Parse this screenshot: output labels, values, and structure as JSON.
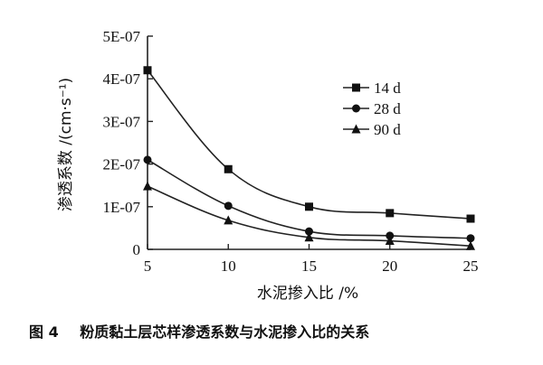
{
  "chart_data": {
    "type": "line",
    "title": "",
    "xlabel": "水泥掺入比 /%",
    "ylabel": "渗透系数 /(cm·s⁻¹)",
    "x": [
      5,
      10,
      15,
      20,
      25
    ],
    "xticks": [
      "5",
      "10",
      "15",
      "20",
      "25"
    ],
    "xlim": [
      5,
      25
    ],
    "ylim": [
      0,
      5e-07
    ],
    "yticks": [
      {
        "value": 0,
        "label": "0"
      },
      {
        "value": 1e-07,
        "label": "1E-07"
      },
      {
        "value": 2e-07,
        "label": "2E-07"
      },
      {
        "value": 3e-07,
        "label": "3E-07"
      },
      {
        "value": 4e-07,
        "label": "4E-07"
      },
      {
        "value": 5e-07,
        "label": "5E-07"
      }
    ],
    "grid": false,
    "legend_position": "top-right",
    "series": [
      {
        "name": "14 d",
        "marker": "square",
        "values": [
          4.2e-07,
          1.88e-07,
          1e-07,
          8.5e-08,
          7.2e-08
        ]
      },
      {
        "name": "28 d",
        "marker": "circle",
        "values": [
          2.1e-07,
          1.02e-07,
          4.2e-08,
          3.2e-08,
          2.6e-08
        ]
      },
      {
        "name": "90 d",
        "marker": "triangle",
        "values": [
          1.48e-07,
          6.8e-08,
          2.8e-08,
          2e-08,
          8e-09
        ]
      }
    ]
  },
  "caption": {
    "number": "图 4",
    "text": "粉质黏土层芯样渗透系数与水泥掺入比的关系"
  }
}
